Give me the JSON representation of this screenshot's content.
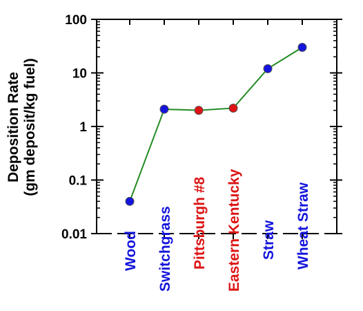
{
  "chart_data": {
    "type": "line",
    "ylabel": [
      "Deposition Rate",
      "(gm deposit/kg fuel)"
    ],
    "categories": [
      "Wood",
      "Switchgrass",
      "Pittsburgh #8",
      "Eastern Kentucky",
      "Straw",
      "Wheat Straw"
    ],
    "values": [
      0.04,
      2.1,
      2.0,
      2.2,
      12,
      30
    ],
    "point_colors": [
      "#1414dc",
      "#1414dc",
      "#dc1414",
      "#dc1414",
      "#1414dc",
      "#1414dc"
    ],
    "line_color": "#228b22",
    "ylim": [
      0.01,
      100
    ],
    "yticks": [
      0.01,
      0.1,
      1,
      10,
      100
    ],
    "log_y": true
  }
}
